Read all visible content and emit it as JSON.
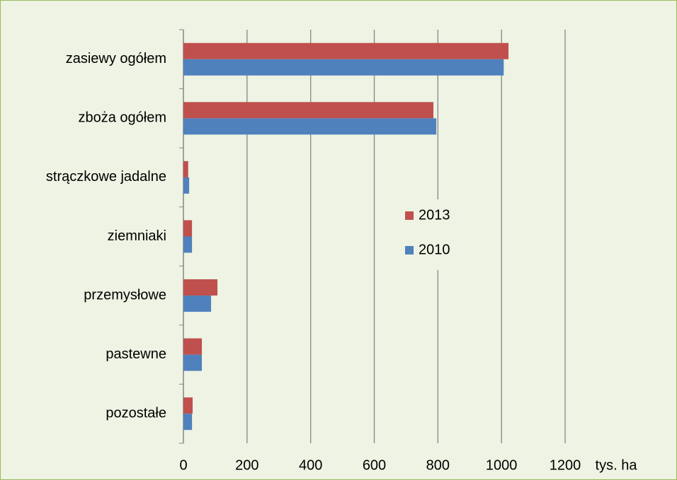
{
  "chart_data": {
    "type": "hbar",
    "categories": [
      "zasiewy ogółem",
      "zboża ogółem",
      "strączkowe jadalne",
      "ziemniaki",
      "przemysłowe",
      "pastewne",
      "pozostałe"
    ],
    "series": [
      {
        "name": "2013",
        "color": "#c0504d",
        "values": [
          1022,
          786,
          15,
          27,
          107,
          58,
          29
        ]
      },
      {
        "name": "2010",
        "color": "#4f81bd",
        "values": [
          1007,
          795,
          18,
          27,
          87,
          58,
          27
        ]
      }
    ],
    "x_label": "tys. ha",
    "xlim": [
      0,
      1200
    ],
    "xticks": [
      0,
      200,
      400,
      600,
      800,
      1000,
      1200
    ],
    "grid": true,
    "legend": "center-right"
  }
}
